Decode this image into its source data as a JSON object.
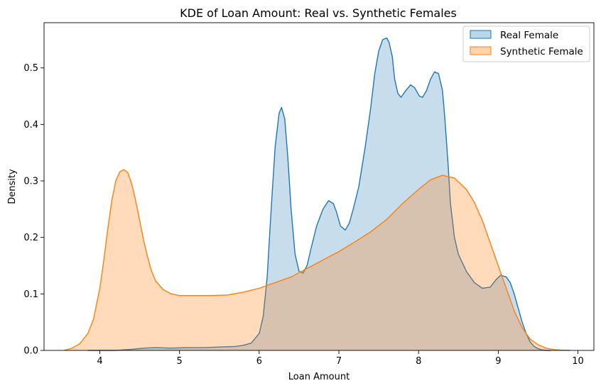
{
  "chart_data": {
    "type": "area",
    "title": "KDE of Loan Amount: Real vs. Synthetic Females",
    "xlabel": "Loan Amount",
    "ylabel": "Density",
    "xlim": [
      3.3,
      10.2
    ],
    "ylim": [
      0,
      0.58
    ],
    "xticks": [
      4,
      5,
      6,
      7,
      8,
      9,
      10
    ],
    "yticks": [
      0.0,
      0.1,
      0.2,
      0.3,
      0.4,
      0.5
    ],
    "ytick_labels": [
      "0.0",
      "0.1",
      "0.2",
      "0.3",
      "0.4",
      "0.5"
    ],
    "grid": false,
    "legend_position": "top-right",
    "series": [
      {
        "name": "Real Female",
        "line_color": "#1f77b4",
        "fill_color": "#1f77b4",
        "fill_opacity": 0.25,
        "x": [
          3.85,
          4.0,
          4.2,
          4.4,
          4.55,
          4.7,
          4.9,
          5.1,
          5.3,
          5.5,
          5.7,
          5.8,
          5.9,
          6.0,
          6.05,
          6.1,
          6.15,
          6.2,
          6.25,
          6.28,
          6.32,
          6.36,
          6.4,
          6.45,
          6.5,
          6.55,
          6.6,
          6.65,
          6.72,
          6.8,
          6.87,
          6.93,
          6.97,
          7.02,
          7.08,
          7.13,
          7.18,
          7.25,
          7.33,
          7.4,
          7.45,
          7.5,
          7.55,
          7.6,
          7.63,
          7.67,
          7.7,
          7.74,
          7.78,
          7.84,
          7.9,
          7.95,
          8.01,
          8.05,
          8.1,
          8.15,
          8.2,
          8.25,
          8.3,
          8.33,
          8.37,
          8.4,
          8.45,
          8.5,
          8.55,
          8.6,
          8.7,
          8.8,
          8.9,
          8.97,
          9.03,
          9.1,
          9.15,
          9.2,
          9.25,
          9.3,
          9.35,
          9.4,
          9.45,
          9.5,
          9.55,
          9.6,
          9.66
        ],
        "y": [
          0.0,
          0.0,
          0.0,
          0.002,
          0.004,
          0.005,
          0.004,
          0.005,
          0.005,
          0.006,
          0.007,
          0.009,
          0.013,
          0.03,
          0.06,
          0.13,
          0.25,
          0.36,
          0.42,
          0.43,
          0.41,
          0.34,
          0.25,
          0.17,
          0.14,
          0.137,
          0.15,
          0.18,
          0.22,
          0.25,
          0.265,
          0.26,
          0.245,
          0.22,
          0.213,
          0.225,
          0.25,
          0.29,
          0.36,
          0.43,
          0.49,
          0.53,
          0.55,
          0.553,
          0.545,
          0.52,
          0.48,
          0.455,
          0.448,
          0.46,
          0.47,
          0.465,
          0.45,
          0.448,
          0.46,
          0.48,
          0.493,
          0.49,
          0.46,
          0.41,
          0.33,
          0.26,
          0.2,
          0.17,
          0.155,
          0.14,
          0.12,
          0.11,
          0.112,
          0.125,
          0.133,
          0.13,
          0.12,
          0.1,
          0.075,
          0.05,
          0.03,
          0.015,
          0.007,
          0.003,
          0.001,
          0.0,
          0.0
        ]
      },
      {
        "name": "Synthetic Female",
        "line_color": "#ff7f0e",
        "fill_color": "#ff7f0e",
        "fill_opacity": 0.28,
        "x": [
          3.55,
          3.65,
          3.75,
          3.85,
          3.92,
          4.0,
          4.05,
          4.1,
          4.15,
          4.2,
          4.25,
          4.3,
          4.35,
          4.4,
          4.45,
          4.5,
          4.55,
          4.6,
          4.65,
          4.7,
          4.8,
          4.9,
          5.0,
          5.1,
          5.2,
          5.4,
          5.6,
          5.8,
          6.0,
          6.2,
          6.4,
          6.6,
          6.8,
          7.0,
          7.2,
          7.4,
          7.6,
          7.8,
          8.0,
          8.15,
          8.3,
          8.45,
          8.6,
          8.7,
          8.8,
          8.9,
          9.0,
          9.1,
          9.2,
          9.3,
          9.4,
          9.5,
          9.6,
          9.7,
          9.8,
          9.9
        ],
        "y": [
          0.0,
          0.004,
          0.012,
          0.03,
          0.055,
          0.11,
          0.16,
          0.215,
          0.265,
          0.3,
          0.316,
          0.32,
          0.315,
          0.295,
          0.265,
          0.23,
          0.195,
          0.165,
          0.14,
          0.123,
          0.107,
          0.1,
          0.097,
          0.097,
          0.097,
          0.097,
          0.098,
          0.103,
          0.11,
          0.12,
          0.13,
          0.145,
          0.16,
          0.175,
          0.192,
          0.21,
          0.232,
          0.26,
          0.285,
          0.302,
          0.31,
          0.305,
          0.285,
          0.262,
          0.23,
          0.19,
          0.15,
          0.11,
          0.07,
          0.04,
          0.02,
          0.01,
          0.004,
          0.0015,
          0.0005,
          0.0
        ]
      }
    ]
  }
}
